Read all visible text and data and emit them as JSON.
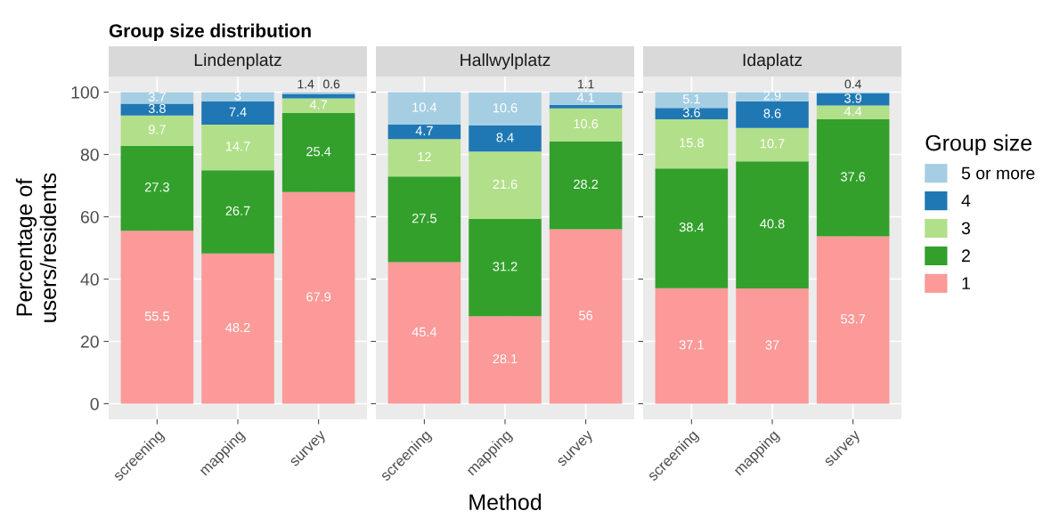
{
  "chart_data": [
    {
      "type": "bar",
      "stacked": true,
      "title": "Group size distribution",
      "subtitle": "Lindenplatz",
      "legend": "right",
      "legend_title": "Group size",
      "ylabel": "Percentage of\nusers/residents",
      "categories": [
        "screening",
        "mapping",
        "survey"
      ],
      "ylim": [
        -5,
        105
      ],
      "yticks": [
        0,
        20,
        40,
        60,
        80,
        100
      ],
      "grid": true,
      "data_labels": true,
      "series": [
        {
          "name": "1",
          "color": "#fb9a99",
          "values": [
            55.5,
            48.2,
            67.9
          ]
        },
        {
          "name": "2",
          "color": "#33a02c",
          "values": [
            27.3,
            26.7,
            25.4
          ]
        },
        {
          "name": "3",
          "color": "#b2df8a",
          "values": [
            9.7,
            14.7,
            4.7
          ]
        },
        {
          "name": "4",
          "color": "#1f78b4",
          "values": [
            3.8,
            7.4,
            1.4
          ]
        },
        {
          "name": "5 or more",
          "color": "#a6cee3",
          "values": [
            3.7,
            3,
            0.6
          ]
        }
      ]
    },
    {
      "type": "bar",
      "stacked": true,
      "subtitle": "Hallwylplatz",
      "legend": "right",
      "xlabel": "Method",
      "categories": [
        "screening",
        "mapping",
        "survey"
      ],
      "ylim": [
        -5,
        105
      ],
      "yticks": [
        0,
        20,
        40,
        60,
        80,
        100
      ],
      "grid": true,
      "data_labels": true,
      "tick_labels": "x",
      "series": [
        {
          "name": "1",
          "color": "#fb9a99",
          "values": [
            45.4,
            28.1,
            56
          ]
        },
        {
          "name": "2",
          "color": "#33a02c",
          "values": [
            27.5,
            31.2,
            28.2
          ]
        },
        {
          "name": "3",
          "color": "#b2df8a",
          "values": [
            12,
            21.6,
            10.6
          ]
        },
        {
          "name": "4",
          "color": "#1f78b4",
          "values": [
            4.7,
            8.4,
            1.1
          ]
        },
        {
          "name": "5 or more",
          "color": "#a6cee3",
          "values": [
            10.4,
            10.6,
            4.1
          ]
        }
      ]
    },
    {
      "type": "bar",
      "stacked": true,
      "subtitle": "Idaplatz",
      "legend": "right",
      "categories": [
        "screening",
        "mapping",
        "survey"
      ],
      "ylim": [
        -5,
        105
      ],
      "yticks": [
        0,
        20,
        40,
        60,
        80,
        100
      ],
      "grid": true,
      "data_labels": true,
      "tick_labels": "x",
      "series": [
        {
          "name": "1",
          "color": "#fb9a99",
          "values": [
            37.1,
            37,
            53.7
          ]
        },
        {
          "name": "2",
          "color": "#33a02c",
          "values": [
            38.4,
            40.8,
            37.6
          ]
        },
        {
          "name": "3",
          "color": "#b2df8a",
          "values": [
            15.8,
            10.7,
            4.4
          ]
        },
        {
          "name": "4",
          "color": "#1f78b4",
          "values": [
            3.6,
            8.6,
            3.9
          ]
        },
        {
          "name": "5 or more",
          "color": "#a6cee3",
          "values": [
            5.1,
            2.9,
            0.4
          ]
        }
      ]
    }
  ]
}
